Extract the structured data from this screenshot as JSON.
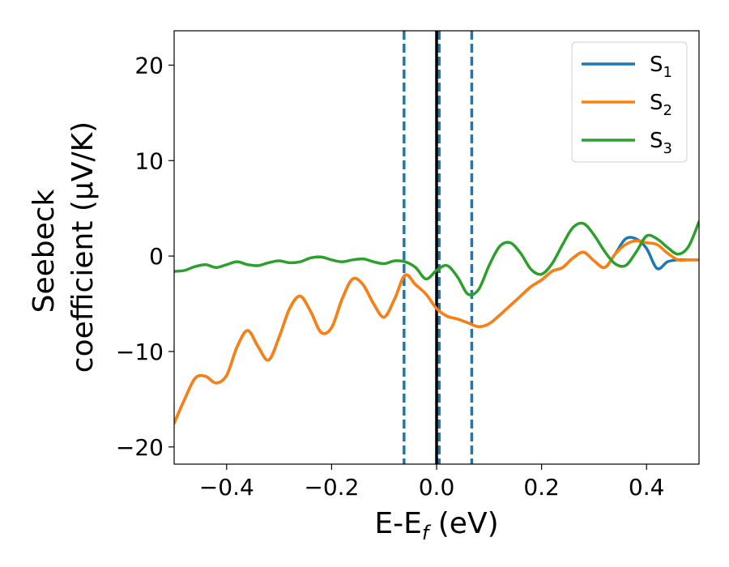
{
  "chart_data": {
    "type": "line",
    "xlabel": "E-E",
    "xlabel_sub": "f",
    "xlabel_unit": " (eV)",
    "ylabel_line1": "Seebeck",
    "ylabel_line2": "coefficient  (μV/K)",
    "xlim": [
      -0.5,
      0.5
    ],
    "ylim": [
      -21.8,
      23.6
    ],
    "x_ticks": [
      -0.4,
      -0.2,
      0.0,
      0.2,
      0.4
    ],
    "x_tick_labels": [
      "−0.4",
      "−0.2",
      "0.0",
      "0.2",
      "0.4"
    ],
    "y_ticks": [
      -20,
      -10,
      0,
      10,
      20
    ],
    "y_tick_labels": [
      "−20",
      "−10",
      "0",
      "10",
      "20"
    ],
    "grid": false,
    "legend_position": "top-right",
    "vlines": [
      {
        "x": -0.062,
        "style": "dashed",
        "color": "#1f77b4"
      },
      {
        "x": 0.005,
        "style": "dashed",
        "color": "#1f77b4"
      },
      {
        "x": 0.067,
        "style": "dashed",
        "color": "#1f77b4"
      },
      {
        "x": 0.0,
        "style": "solid",
        "color": "#000000"
      }
    ],
    "series": [
      {
        "name": "S",
        "sub": "1",
        "color": "#1f77b4",
        "x": [
          -0.5,
          -0.48,
          -0.46,
          -0.44,
          -0.42,
          -0.4,
          -0.38,
          -0.36,
          -0.34,
          -0.32,
          -0.3,
          -0.28,
          -0.26,
          -0.24,
          -0.22,
          -0.2,
          -0.18,
          -0.16,
          -0.14,
          -0.12,
          -0.1,
          -0.08,
          -0.06,
          -0.04,
          -0.02,
          0.0,
          0.02,
          0.04,
          0.06,
          0.08,
          0.1,
          0.12,
          0.14,
          0.16,
          0.18,
          0.2,
          0.22,
          0.24,
          0.26,
          0.28,
          0.3,
          0.32,
          0.34,
          0.36,
          0.38,
          0.4,
          0.42,
          0.44,
          0.46,
          0.48,
          0.5
        ],
        "values": [
          -17.5,
          -15,
          -12.8,
          -12.6,
          -13.3,
          -12.5,
          -9.5,
          -7.8,
          -9.5,
          -10.9,
          -8.5,
          -5.5,
          -4.2,
          -5.8,
          -8,
          -7.5,
          -4.5,
          -2.4,
          -3,
          -5,
          -6.4,
          -4.5,
          -2,
          -3,
          -4,
          -5.5,
          -6.3,
          -6.6,
          -7,
          -7.4,
          -7.1,
          -6.2,
          -5.2,
          -4.2,
          -3.2,
          -2.5,
          -1.6,
          -1.2,
          -0.2,
          0.4,
          -0.5,
          -1.2,
          0.2,
          1.8,
          1.8,
          0.8,
          -1.3,
          -0.6,
          -0.4,
          -0.4,
          -0.4
        ]
      },
      {
        "name": "S",
        "sub": "2",
        "color": "#ff7f0e",
        "x": [
          -0.5,
          -0.48,
          -0.46,
          -0.44,
          -0.42,
          -0.4,
          -0.38,
          -0.36,
          -0.34,
          -0.32,
          -0.3,
          -0.28,
          -0.26,
          -0.24,
          -0.22,
          -0.2,
          -0.18,
          -0.16,
          -0.14,
          -0.12,
          -0.1,
          -0.08,
          -0.06,
          -0.04,
          -0.02,
          0.0,
          0.02,
          0.04,
          0.06,
          0.08,
          0.1,
          0.12,
          0.14,
          0.16,
          0.18,
          0.2,
          0.22,
          0.24,
          0.26,
          0.28,
          0.3,
          0.32,
          0.34,
          0.36,
          0.38,
          0.4,
          0.42,
          0.44,
          0.46,
          0.48,
          0.5
        ],
        "values": [
          -17.5,
          -15,
          -12.8,
          -12.6,
          -13.3,
          -12.5,
          -9.5,
          -7.8,
          -9.5,
          -10.9,
          -8.5,
          -5.5,
          -4.2,
          -5.8,
          -8,
          -7.5,
          -4.5,
          -2.4,
          -3,
          -5,
          -6.4,
          -4.5,
          -2,
          -3,
          -4,
          -5.5,
          -6.3,
          -6.6,
          -7,
          -7.4,
          -7.1,
          -6.2,
          -5.2,
          -4.2,
          -3.2,
          -2.5,
          -1.6,
          -1.2,
          -0.2,
          0.4,
          -0.5,
          -1.2,
          0.2,
          1.2,
          1.6,
          1.4,
          1.2,
          0.3,
          -0.4,
          -0.4,
          -0.4
        ]
      },
      {
        "name": "S",
        "sub": "3",
        "color": "#2ca02c",
        "x": [
          -0.5,
          -0.48,
          -0.46,
          -0.44,
          -0.42,
          -0.4,
          -0.38,
          -0.36,
          -0.34,
          -0.32,
          -0.3,
          -0.28,
          -0.26,
          -0.24,
          -0.22,
          -0.2,
          -0.18,
          -0.16,
          -0.14,
          -0.12,
          -0.1,
          -0.08,
          -0.06,
          -0.04,
          -0.02,
          0.0,
          0.02,
          0.04,
          0.06,
          0.08,
          0.1,
          0.12,
          0.14,
          0.16,
          0.18,
          0.2,
          0.22,
          0.24,
          0.26,
          0.28,
          0.3,
          0.32,
          0.34,
          0.36,
          0.38,
          0.4,
          0.42,
          0.44,
          0.46,
          0.48,
          0.5
        ],
        "values": [
          -1.6,
          -1.5,
          -1.1,
          -0.9,
          -1.2,
          -0.9,
          -0.6,
          -0.9,
          -1.0,
          -0.7,
          -0.5,
          -0.7,
          -0.6,
          -0.2,
          -0.1,
          -0.4,
          -0.6,
          -0.4,
          -0.3,
          -0.6,
          -0.8,
          -0.5,
          -0.6,
          -1.2,
          -2.4,
          -1.5,
          -1.0,
          -2.2,
          -4.0,
          -3.5,
          -1.0,
          1.0,
          1.4,
          0.3,
          -1.4,
          -1.9,
          -0.8,
          1.2,
          3.0,
          3.4,
          2.2,
          0.5,
          -0.8,
          -1.0,
          0.4,
          2.1,
          1.8,
          0.9,
          0.2,
          1.0,
          3.6
        ]
      }
    ]
  }
}
